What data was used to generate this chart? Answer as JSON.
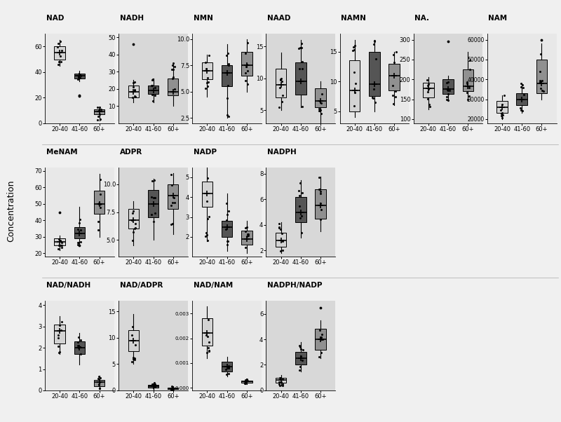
{
  "panels": [
    {
      "title": "NAD",
      "stats": [
        {
          "med": 55,
          "q1": 50,
          "q3": 60,
          "whislo": 45,
          "whishi": 65,
          "fliers": []
        },
        {
          "med": 37,
          "q1": 35,
          "q3": 39,
          "whislo": 33,
          "whishi": 41,
          "fliers": [
            21,
            22
          ]
        },
        {
          "med": 9,
          "q1": 7,
          "q3": 11,
          "whislo": 2,
          "whishi": 13,
          "fliers": []
        }
      ],
      "ylim": [
        0,
        70
      ],
      "yticks": [
        0,
        20,
        40,
        60
      ],
      "row": 0,
      "col": 0
    },
    {
      "title": "NADH",
      "stats": [
        {
          "med": 18,
          "q1": 15,
          "q3": 22,
          "whislo": 12,
          "whishi": 25,
          "fliers": [
            46
          ]
        },
        {
          "med": 19,
          "q1": 17,
          "q3": 22,
          "whislo": 12,
          "whishi": 26,
          "fliers": []
        },
        {
          "med": 18,
          "q1": 16,
          "q3": 26,
          "whislo": 10,
          "whishi": 35,
          "fliers": []
        }
      ],
      "ylim": [
        0,
        52
      ],
      "yticks": [
        10,
        20,
        30,
        40,
        50
      ],
      "row": 0,
      "col": 1
    },
    {
      "title": "NMN",
      "stats": [
        {
          "med": 7.0,
          "q1": 6.2,
          "q3": 7.8,
          "whislo": 4.5,
          "whishi": 8.5,
          "fliers": []
        },
        {
          "med": 6.8,
          "q1": 5.5,
          "q3": 7.5,
          "whislo": 2.5,
          "whishi": 9.5,
          "fliers": []
        },
        {
          "med": 7.5,
          "q1": 6.5,
          "q3": 8.8,
          "whislo": 5.0,
          "whishi": 10.0,
          "fliers": []
        }
      ],
      "ylim": [
        2.0,
        10.5
      ],
      "yticks": [
        2.5,
        5.0,
        7.5,
        10.0
      ],
      "row": 0,
      "col": 2
    },
    {
      "title": "NAAD",
      "stats": [
        {
          "med": 9.0,
          "q1": 7.0,
          "q3": 11.5,
          "whislo": 5.0,
          "whishi": 14.0,
          "fliers": []
        },
        {
          "med": 9.5,
          "q1": 7.5,
          "q3": 12.5,
          "whislo": 5.5,
          "whishi": 16.0,
          "fliers": []
        },
        {
          "med": 6.5,
          "q1": 5.5,
          "q3": 8.5,
          "whislo": 3.0,
          "whishi": 9.5,
          "fliers": []
        }
      ],
      "ylim": [
        3,
        17
      ],
      "yticks": [
        5,
        10,
        15
      ],
      "row": 0,
      "col": 3
    },
    {
      "title": "NAMN",
      "stats": [
        {
          "med": 8.5,
          "q1": 5.0,
          "q3": 13.5,
          "whislo": 4.0,
          "whishi": 17.0,
          "fliers": []
        },
        {
          "med": 9.5,
          "q1": 7.5,
          "q3": 15.0,
          "whislo": 5.0,
          "whishi": 17.0,
          "fliers": []
        },
        {
          "med": 11.0,
          "q1": 8.5,
          "q3": 13.0,
          "whislo": 6.0,
          "whishi": 15.0,
          "fliers": []
        }
      ],
      "ylim": [
        3,
        18
      ],
      "yticks": [
        5,
        10,
        15
      ],
      "row": 0,
      "col": 4
    },
    {
      "title": "NA.",
      "stats": [
        {
          "med": 178,
          "q1": 155,
          "q3": 192,
          "whislo": 125,
          "whishi": 205,
          "fliers": []
        },
        {
          "med": 175,
          "q1": 163,
          "q3": 200,
          "whislo": 145,
          "whishi": 210,
          "fliers": [
            295
          ]
        },
        {
          "med": 182,
          "q1": 170,
          "q3": 225,
          "whislo": 145,
          "whishi": 270,
          "fliers": []
        }
      ],
      "ylim": [
        90,
        315
      ],
      "yticks": [
        100,
        150,
        200,
        250,
        300
      ],
      "row": 0,
      "col": 5
    },
    {
      "title": "NAM",
      "stats": [
        {
          "med": 26000,
          "q1": 23000,
          "q3": 29000,
          "whislo": 20000,
          "whishi": 32000,
          "fliers": []
        },
        {
          "med": 30000,
          "q1": 27000,
          "q3": 33000,
          "whislo": 23000,
          "whishi": 38000,
          "fliers": []
        },
        {
          "med": 38000,
          "q1": 33000,
          "q3": 50000,
          "whislo": 30000,
          "whishi": 58000,
          "fliers": [
            60000
          ]
        }
      ],
      "ylim": [
        18000,
        63000
      ],
      "yticks": [
        20000,
        30000,
        40000,
        50000,
        60000
      ],
      "row": 0,
      "col": 6
    },
    {
      "title": "MeNAM",
      "stats": [
        {
          "med": 27,
          "q1": 25,
          "q3": 29,
          "whislo": 22,
          "whishi": 31,
          "fliers": [
            45
          ]
        },
        {
          "med": 32,
          "q1": 29,
          "q3": 36,
          "whislo": 25,
          "whishi": 48,
          "fliers": [
            25
          ]
        },
        {
          "med": 50,
          "q1": 44,
          "q3": 58,
          "whislo": 30,
          "whishi": 68,
          "fliers": []
        }
      ],
      "ylim": [
        18,
        72
      ],
      "yticks": [
        20,
        30,
        40,
        50,
        60,
        70
      ],
      "row": 1,
      "col": 0
    },
    {
      "title": "ADPR",
      "stats": [
        {
          "med": 6.8,
          "q1": 6.0,
          "q3": 7.8,
          "whislo": 4.5,
          "whishi": 8.5,
          "fliers": []
        },
        {
          "med": 8.2,
          "q1": 7.0,
          "q3": 9.5,
          "whislo": 5.0,
          "whishi": 10.5,
          "fliers": []
        },
        {
          "med": 9.0,
          "q1": 7.8,
          "q3": 10.0,
          "whislo": 5.5,
          "whishi": 11.0,
          "fliers": []
        }
      ],
      "ylim": [
        3.5,
        11.5
      ],
      "yticks": [
        5.0,
        7.5,
        10.0
      ],
      "row": 1,
      "col": 1
    },
    {
      "title": "NADP",
      "stats": [
        {
          "med": 4.2,
          "q1": 3.5,
          "q3": 4.8,
          "whislo": 1.8,
          "whishi": 5.5,
          "fliers": []
        },
        {
          "med": 2.5,
          "q1": 2.0,
          "q3": 2.8,
          "whislo": 1.3,
          "whishi": 4.2,
          "fliers": []
        },
        {
          "med": 1.9,
          "q1": 1.6,
          "q3": 2.3,
          "whislo": 1.2,
          "whishi": 2.8,
          "fliers": []
        }
      ],
      "ylim": [
        1.0,
        5.5
      ],
      "yticks": [
        2,
        3,
        4,
        5
      ],
      "row": 1,
      "col": 2
    },
    {
      "title": "NADPH",
      "stats": [
        {
          "med": 2.8,
          "q1": 2.3,
          "q3": 3.4,
          "whislo": 1.8,
          "whishi": 4.2,
          "fliers": []
        },
        {
          "med": 5.0,
          "q1": 4.2,
          "q3": 6.2,
          "whislo": 3.0,
          "whishi": 7.5,
          "fliers": []
        },
        {
          "med": 5.5,
          "q1": 4.5,
          "q3": 6.8,
          "whislo": 3.5,
          "whishi": 7.8,
          "fliers": []
        }
      ],
      "ylim": [
        1.5,
        8.5
      ],
      "yticks": [
        2,
        4,
        6,
        8
      ],
      "row": 1,
      "col": 3
    },
    {
      "title": "NAD/NADH",
      "stats": [
        {
          "med": 2.8,
          "q1": 2.2,
          "q3": 3.1,
          "whislo": 1.7,
          "whishi": 3.5,
          "fliers": []
        },
        {
          "med": 2.0,
          "q1": 1.7,
          "q3": 2.3,
          "whislo": 1.2,
          "whishi": 2.7,
          "fliers": []
        },
        {
          "med": 0.4,
          "q1": 0.2,
          "q3": 0.5,
          "whislo": 0.05,
          "whishi": 0.7,
          "fliers": []
        }
      ],
      "ylim": [
        0,
        4.2
      ],
      "yticks": [
        0,
        1,
        2,
        3,
        4
      ],
      "row": 2,
      "col": 0
    },
    {
      "title": "NAD/ADPR",
      "stats": [
        {
          "med": 9.5,
          "q1": 7.5,
          "q3": 11.5,
          "whislo": 5.0,
          "whishi": 14.5,
          "fliers": []
        },
        {
          "med": 0.8,
          "q1": 0.5,
          "q3": 1.0,
          "whislo": 0.15,
          "whishi": 1.5,
          "fliers": []
        },
        {
          "med": 0.3,
          "q1": 0.2,
          "q3": 0.5,
          "whislo": 0.05,
          "whishi": 0.8,
          "fliers": []
        }
      ],
      "ylim": [
        0,
        17
      ],
      "yticks": [
        0,
        5,
        10,
        15
      ],
      "row": 2,
      "col": 1
    },
    {
      "title": "NAD/NAM",
      "stats": [
        {
          "med": 0.0022,
          "q1": 0.0017,
          "q3": 0.0028,
          "whislo": 0.0012,
          "whishi": 0.0033,
          "fliers": []
        },
        {
          "med": 0.00085,
          "q1": 0.00065,
          "q3": 0.00105,
          "whislo": 0.00045,
          "whishi": 0.00125,
          "fliers": []
        },
        {
          "med": 0.00025,
          "q1": 0.0002,
          "q3": 0.0003,
          "whislo": 0.00015,
          "whishi": 0.00035,
          "fliers": []
        }
      ],
      "ylim": [
        -0.0001,
        0.0035
      ],
      "yticks": [
        0.0,
        0.001,
        0.002,
        0.003
      ],
      "row": 2,
      "col": 2
    },
    {
      "title": "NADPH/NADP",
      "stats": [
        {
          "med": 0.8,
          "q1": 0.6,
          "q3": 1.0,
          "whislo": 0.4,
          "whishi": 1.2,
          "fliers": []
        },
        {
          "med": 2.5,
          "q1": 2.0,
          "q3": 3.0,
          "whislo": 1.5,
          "whishi": 3.8,
          "fliers": []
        },
        {
          "med": 4.0,
          "q1": 3.2,
          "q3": 4.8,
          "whislo": 2.5,
          "whishi": 5.5,
          "fliers": [
            6.5
          ]
        }
      ],
      "ylim": [
        0,
        7
      ],
      "yticks": [
        0,
        2,
        4,
        6
      ],
      "row": 2,
      "col": 3
    }
  ],
  "groups": [
    "20-40",
    "41-60",
    "60+"
  ],
  "box_colors": [
    "#d3d3d3",
    "#555555",
    "#909090"
  ],
  "bg_color_light": "#ececec",
  "bg_color_dark": "#e0e0e0",
  "ylabel": "Concentration",
  "fig_facecolor": "#f5f5f5"
}
